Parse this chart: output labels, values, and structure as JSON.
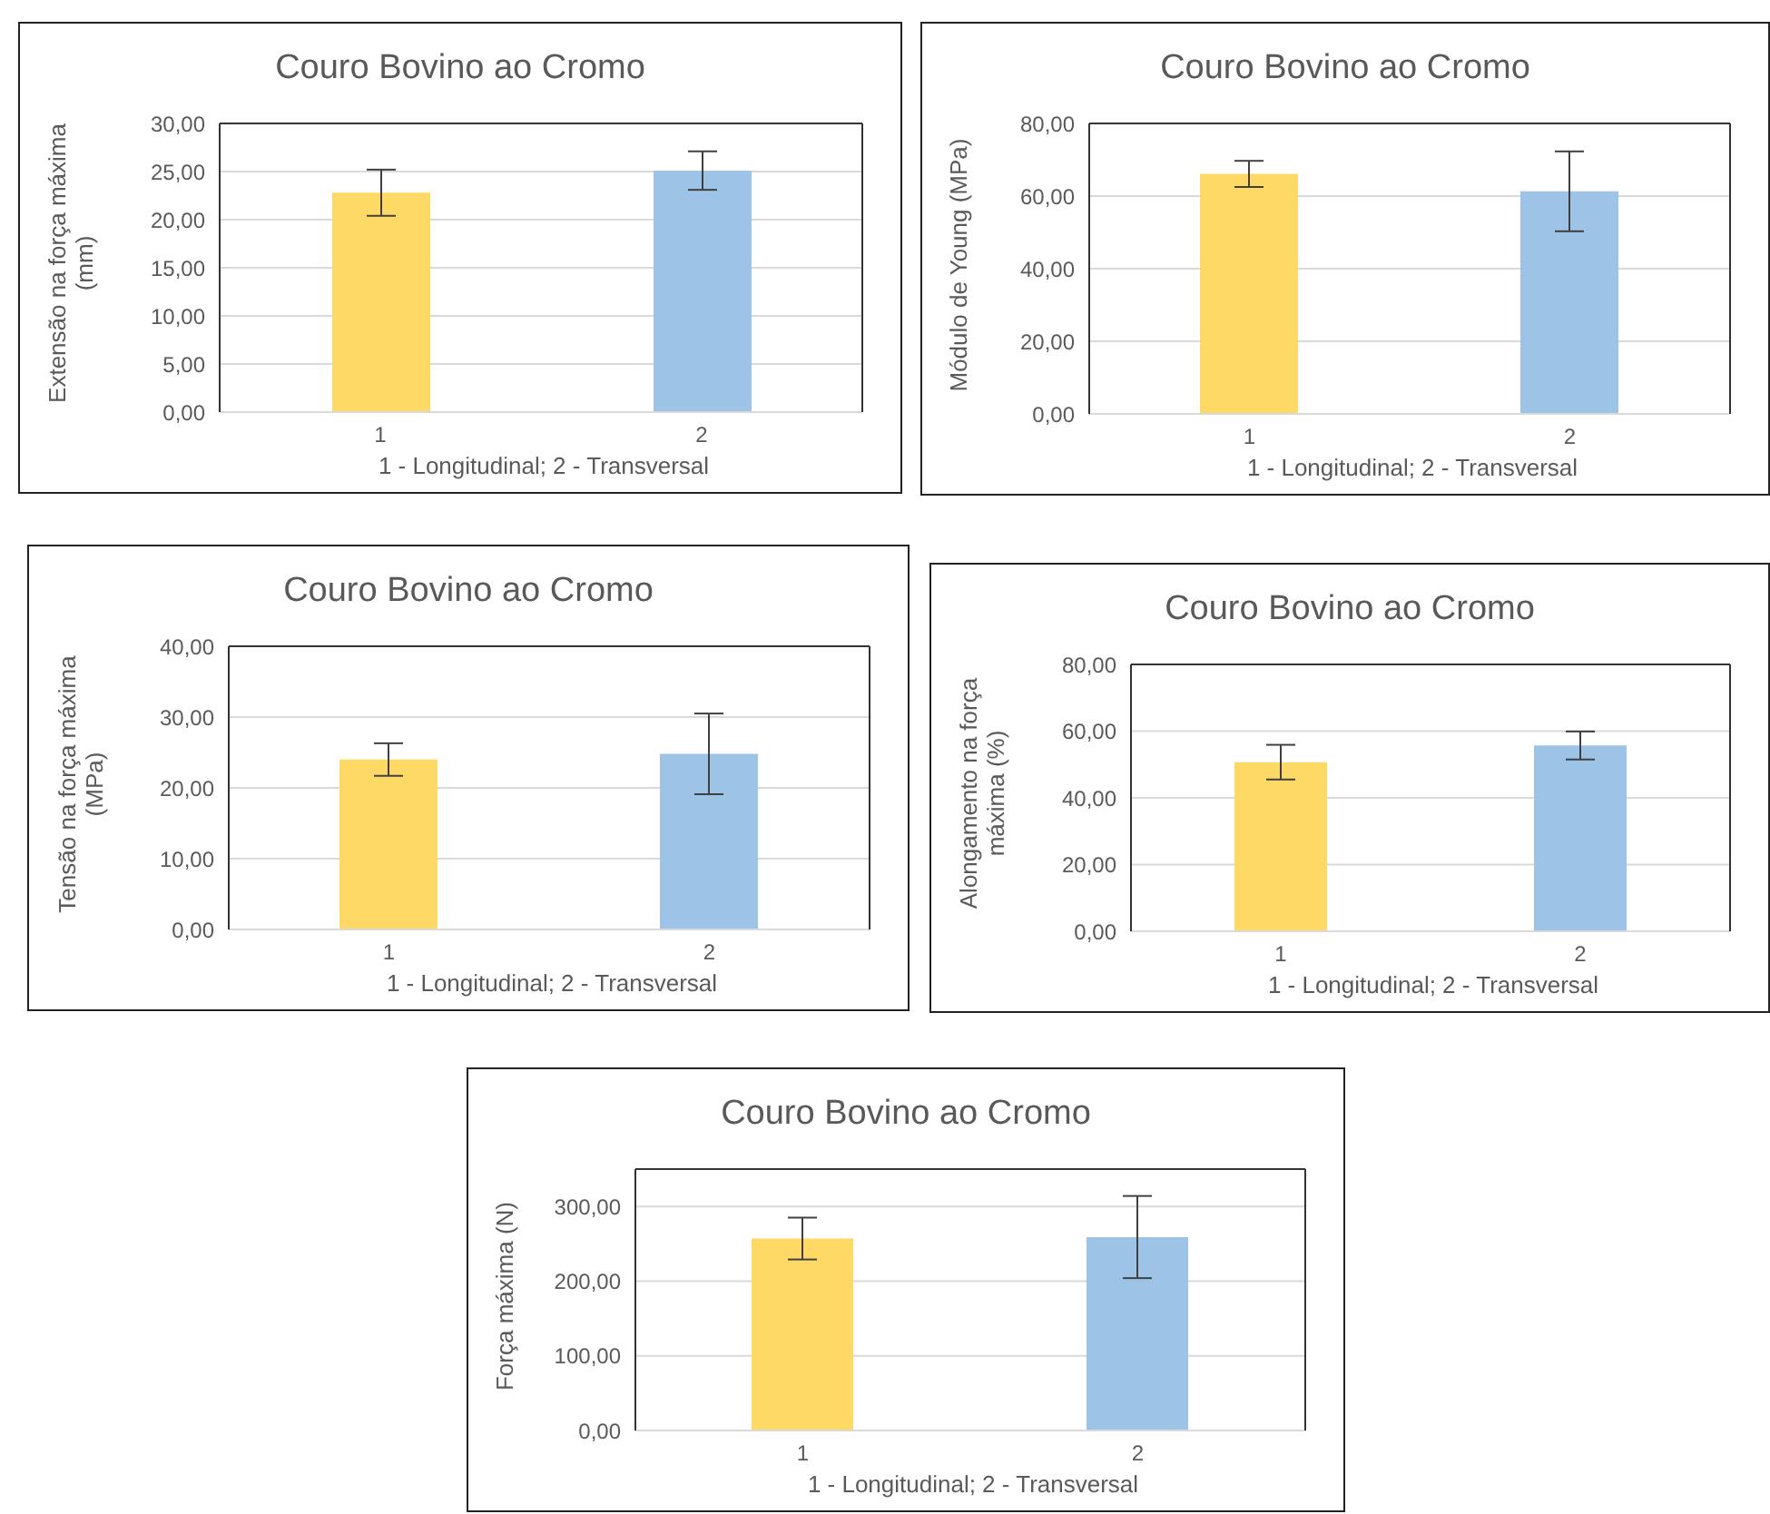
{
  "chart_data": [
    {
      "type": "bar",
      "title": "Couro Bovino ao Cromo",
      "xlabel": "1 - Longitudinal; 2 - Transversal",
      "ylabel": "Extensão na força máxima (mm)",
      "categories": [
        "1",
        "2"
      ],
      "values": [
        22.8,
        25.1
      ],
      "colors": [
        "#ffd966",
        "#9dc3e6"
      ],
      "errors": [
        2.4,
        2.0
      ],
      "ylim": [
        0,
        30
      ],
      "yticks": [
        {
          "value": 0,
          "label": "0,00"
        },
        {
          "value": 5,
          "label": "5,00"
        },
        {
          "value": 10,
          "label": "10,00"
        },
        {
          "value": 15,
          "label": "15,00"
        },
        {
          "value": 20,
          "label": "20,00"
        },
        {
          "value": 25,
          "label": "25,00"
        },
        {
          "value": 30,
          "label": "30,00"
        }
      ],
      "grid": "y"
    },
    {
      "type": "bar",
      "title": "Couro Bovino ao Cromo",
      "xlabel": "1 - Longitudinal; 2 - Transversal",
      "ylabel": "Módulo de Young (MPa)",
      "categories": [
        "1",
        "2"
      ],
      "values": [
        66.1,
        61.3
      ],
      "colors": [
        "#ffd966",
        "#9dc3e6"
      ],
      "errors": [
        3.6,
        11
      ],
      "ylim": [
        0,
        80
      ],
      "yticks": [
        {
          "value": 0,
          "label": "0,00"
        },
        {
          "value": 20,
          "label": "20,00"
        },
        {
          "value": 40,
          "label": "40,00"
        },
        {
          "value": 60,
          "label": "60,00"
        },
        {
          "value": 80,
          "label": "80,00"
        }
      ],
      "grid": "y"
    },
    {
      "type": "bar",
      "title": "Couro Bovino ao Cromo",
      "xlabel": "1 - Longitudinal; 2 - Transversal",
      "ylabel": "Tensão na força máxima (MPa)",
      "categories": [
        "1",
        "2"
      ],
      "values": [
        24.0,
        24.8
      ],
      "colors": [
        "#ffd966",
        "#9dc3e6"
      ],
      "errors": [
        2.3,
        5.7
      ],
      "ylim": [
        0,
        40
      ],
      "yticks": [
        {
          "value": 0,
          "label": "0,00"
        },
        {
          "value": 10,
          "label": "10,00"
        },
        {
          "value": 20,
          "label": "20,00"
        },
        {
          "value": 30,
          "label": "30,00"
        },
        {
          "value": 40,
          "label": "40,00"
        }
      ],
      "grid": "y"
    },
    {
      "type": "bar",
      "title": "Couro Bovino ao Cromo",
      "xlabel": "1 - Longitudinal; 2 - Transversal",
      "ylabel": "Alongamento na força máxima (%)",
      "categories": [
        "1",
        "2"
      ],
      "values": [
        50.7,
        55.7
      ],
      "colors": [
        "#ffd966",
        "#9dc3e6"
      ],
      "errors": [
        5.2,
        4.2
      ],
      "ylim": [
        0,
        80
      ],
      "yticks": [
        {
          "value": 0,
          "label": "0,00"
        },
        {
          "value": 20,
          "label": "20,00"
        },
        {
          "value": 40,
          "label": "40,00"
        },
        {
          "value": 60,
          "label": "60,00"
        },
        {
          "value": 80,
          "label": "80,00"
        }
      ],
      "grid": "y"
    },
    {
      "type": "bar",
      "title": "Couro Bovino ao Cromo",
      "xlabel": "1 - Longitudinal; 2 - Transversal",
      "ylabel": "Força máxima (N)",
      "categories": [
        "1",
        "2"
      ],
      "values": [
        257,
        259
      ],
      "colors": [
        "#ffd966",
        "#9dc3e6"
      ],
      "errors": [
        28,
        55
      ],
      "ylim": [
        0,
        350
      ],
      "yticks": [
        {
          "value": 0,
          "label": "0,00"
        },
        {
          "value": 100,
          "label": "100,00"
        },
        {
          "value": 200,
          "label": "200,00"
        },
        {
          "value": 300,
          "label": "300,00"
        }
      ],
      "grid": "y"
    }
  ]
}
